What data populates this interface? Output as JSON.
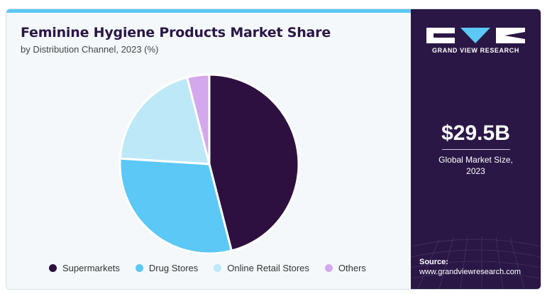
{
  "header": {
    "title": "Feminine Hygiene Products Market Share",
    "subtitle": "by Distribution Channel, 2023 (%)"
  },
  "brand": {
    "logo_text": "GRAND VIEW RESEARCH",
    "logo_icon": "gvr-logo"
  },
  "stat": {
    "value": "$29.5B",
    "label_line1": "Global Market Size,",
    "label_line2": "2023"
  },
  "source": {
    "label": "Source:",
    "url": "www.grandviewresearch.com"
  },
  "colors": {
    "accent_bar": "#5bc8f5",
    "panel_bg": "#2a1745"
  },
  "chart_data": {
    "type": "pie",
    "title": "Feminine Hygiene Products Market Share",
    "subtitle": "by Distribution Channel, 2023 (%)",
    "categories": [
      "Supermarkets",
      "Drug Stores",
      "Online Retail Stores",
      "Others"
    ],
    "values": [
      46,
      30,
      20,
      4
    ],
    "colors": [
      "#2e1040",
      "#5bc8f5",
      "#bde8f7",
      "#d4a8ec"
    ],
    "start_angle_deg": 0,
    "direction": "clockwise",
    "legend_position": "bottom"
  }
}
